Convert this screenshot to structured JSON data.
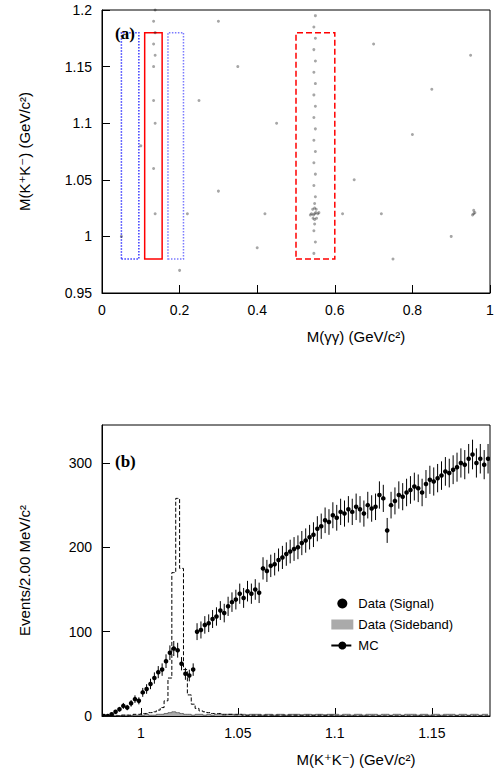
{
  "chart_data": [
    {
      "type": "scatter",
      "title": "(a)",
      "x_label": "M(γγ) (GeV/c²)",
      "y_label": "M(K⁺K⁻) (GeV/c²)",
      "xlim": [
        0,
        1
      ],
      "ylim": [
        0.95,
        1.2
      ],
      "xticks": [
        0,
        0.2,
        0.4,
        0.6,
        0.8,
        1
      ],
      "yticks": [
        0.95,
        1,
        1.05,
        1.1,
        1.15,
        1.2
      ],
      "color": "#000000",
      "x": [
        0.548,
        0.545,
        0.551,
        0.54,
        0.556,
        0.548,
        0.548,
        0.543,
        0.553,
        0.544,
        0.552,
        0.537,
        0.559,
        0.548,
        0.548,
        0.546,
        0.55,
        0.546,
        0.55,
        0.546,
        0.55,
        0.546,
        0.55,
        0.546,
        0.55,
        0.546,
        0.55,
        0.546,
        0.55,
        0.546,
        0.55,
        0.546,
        0.55,
        0.546,
        0.55,
        0.133,
        0.137,
        0.133,
        0.137,
        0.133,
        0.137,
        0.133,
        0.137,
        0.133,
        0.137,
        0.958,
        0.955,
        0.961,
        0.958,
        0.05,
        0.1,
        0.2,
        0.25,
        0.3,
        0.35,
        0.4,
        0.45,
        0.65,
        0.7,
        0.75,
        0.8,
        0.85,
        0.9,
        0.95,
        0.3,
        0.62,
        0.72,
        0.42,
        0.22
      ],
      "y": [
        1.02,
        1.019,
        1.021,
        1.02,
        1.02,
        1.015,
        1.025,
        1.024,
        1.016,
        1.016,
        1.024,
        1.019,
        1.021,
        1.029,
        1.011,
        0.985,
        0.995,
        1.005,
        1.035,
        1.045,
        1.055,
        1.065,
        1.075,
        1.085,
        1.095,
        1.105,
        1.115,
        1.125,
        1.135,
        1.145,
        1.155,
        1.165,
        1.175,
        1.185,
        1.195,
        1.15,
        1.16,
        1.17,
        1.18,
        1.19,
        1.2,
        1.12,
        1.1,
        1.06,
        1.02,
        1.02,
        1.019,
        1.021,
        1.023,
        1.0,
        1.08,
        0.97,
        1.12,
        1.04,
        1.15,
        0.99,
        1.1,
        1.05,
        1.17,
        0.98,
        1.09,
        1.13,
        1.0,
        1.16,
        1.19,
        1.02,
        1.02,
        1.02,
        1.02
      ],
      "regions": [
        {
          "x": [
            0.05,
            0.095
          ],
          "y": [
            0.98,
            1.18
          ],
          "color": "#3a3aff",
          "line_style": "dotted"
        },
        {
          "x": [
            0.11,
            0.155
          ],
          "y": [
            0.98,
            1.18
          ],
          "color": "#ff0000",
          "line_style": "solid"
        },
        {
          "x": [
            0.17,
            0.21
          ],
          "y": [
            0.98,
            1.18
          ],
          "color": "#7a7aff",
          "line_style": "dotted"
        },
        {
          "x": [
            0.5,
            0.6
          ],
          "y": [
            0.98,
            1.18
          ],
          "color": "#ff0000",
          "line_style": "dashed"
        }
      ]
    },
    {
      "type": "histogram",
      "title": "(b)",
      "x_label": "M(K⁺K⁻) (GeV/c²)",
      "y_label": "Events/2.00 MeV/c²",
      "xlim": [
        0.98,
        1.18
      ],
      "ylim": [
        0,
        345
      ],
      "xticks": [
        1,
        1.05,
        1.1,
        1.15
      ],
      "yticks": [
        0,
        100,
        200,
        300
      ],
      "legend": "right",
      "x": [
        0.981,
        0.983,
        0.985,
        0.987,
        0.989,
        0.991,
        0.993,
        0.995,
        0.997,
        0.999,
        1.001,
        1.003,
        1.005,
        1.007,
        1.009,
        1.011,
        1.013,
        1.015,
        1.017,
        1.019,
        1.021,
        1.023,
        1.025,
        1.027,
        1.029,
        1.031,
        1.033,
        1.035,
        1.037,
        1.039,
        1.041,
        1.043,
        1.045,
        1.047,
        1.049,
        1.051,
        1.053,
        1.055,
        1.057,
        1.059,
        1.061,
        1.063,
        1.065,
        1.067,
        1.069,
        1.071,
        1.073,
        1.075,
        1.077,
        1.079,
        1.081,
        1.083,
        1.085,
        1.087,
        1.089,
        1.091,
        1.093,
        1.095,
        1.097,
        1.099,
        1.101,
        1.103,
        1.105,
        1.107,
        1.109,
        1.111,
        1.113,
        1.115,
        1.117,
        1.119,
        1.121,
        1.123,
        1.125,
        1.127,
        1.129,
        1.131,
        1.133,
        1.135,
        1.137,
        1.139,
        1.141,
        1.143,
        1.145,
        1.147,
        1.149,
        1.151,
        1.153,
        1.155,
        1.157,
        1.159,
        1.161,
        1.163,
        1.165,
        1.167,
        1.169,
        1.171,
        1.173,
        1.175,
        1.177,
        1.179
      ],
      "series": [
        {
          "name": "Data (Signal)",
          "type": "errorbar",
          "color": "#000000",
          "marker": "circle",
          "values": [
            0,
            0,
            2,
            5,
            8,
            12,
            10,
            15,
            20,
            18,
            28,
            32,
            38,
            45,
            52,
            55,
            65,
            75,
            80,
            78,
            62,
            50,
            48,
            55,
            100,
            102,
            108,
            110,
            115,
            118,
            125,
            122,
            130,
            135,
            138,
            145,
            140,
            148,
            145,
            150,
            146,
            175,
            172,
            178,
            180,
            185,
            188,
            192,
            195,
            198,
            200,
            205,
            208,
            212,
            215,
            222,
            225,
            232,
            230,
            238,
            235,
            242,
            240,
            245,
            242,
            248,
            245,
            240,
            250,
            246,
            248,
            262,
            258,
            220,
            250,
            255,
            262,
            260,
            265,
            268,
            272,
            270,
            265,
            275,
            280,
            278,
            282,
            285,
            290,
            288,
            292,
            295,
            300,
            298,
            305,
            310,
            300,
            305,
            298,
            305
          ],
          "errors": [
            0,
            0,
            1.4,
            2.2,
            2.8,
            3.5,
            3.2,
            3.9,
            4.5,
            4.2,
            5.3,
            5.7,
            6.2,
            6.7,
            7.2,
            7.4,
            8.1,
            8.7,
            8.9,
            8.8,
            7.9,
            7.1,
            6.9,
            7.4,
            10,
            10.1,
            10.4,
            10.5,
            10.7,
            10.9,
            11.2,
            11.0,
            11.4,
            11.6,
            11.7,
            12.0,
            11.8,
            12.2,
            12.0,
            12.2,
            12.1,
            13.2,
            13.1,
            13.3,
            13.4,
            13.6,
            13.7,
            13.9,
            14.0,
            14.1,
            14.1,
            14.3,
            14.4,
            14.6,
            14.7,
            14.9,
            15.0,
            15.2,
            15.2,
            15.4,
            15.3,
            15.6,
            15.5,
            15.7,
            15.6,
            15.7,
            15.7,
            15.5,
            15.8,
            15.7,
            15.7,
            16.2,
            16.1,
            14.8,
            15.8,
            16.0,
            16.2,
            16.1,
            16.3,
            16.4,
            16.5,
            16.4,
            16.3,
            16.6,
            16.7,
            16.7,
            16.8,
            16.9,
            17.0,
            17.0,
            17.1,
            17.2,
            17.3,
            17.3,
            17.5,
            17.6,
            17.3,
            17.5,
            17.3,
            17.5
          ]
        },
        {
          "name": "Data (Sideband)",
          "type": "area",
          "color": "#aaaaaa",
          "values": [
            0,
            0,
            0,
            1,
            0,
            1,
            1,
            0,
            1,
            1,
            1,
            2,
            1,
            1,
            2,
            2,
            3,
            4,
            5,
            4,
            3,
            2,
            2,
            1,
            2,
            2,
            1,
            2,
            1,
            2,
            2,
            1,
            2,
            2,
            1,
            2,
            2,
            1,
            2,
            2,
            2,
            1,
            2,
            2,
            1,
            2,
            2,
            1,
            2,
            2,
            2,
            1,
            2,
            2,
            1,
            2,
            2,
            1,
            2,
            2,
            2,
            1,
            2,
            2,
            1,
            2,
            2,
            1,
            2,
            2,
            2,
            1,
            2,
            2,
            1,
            2,
            2,
            1,
            2,
            2,
            2,
            1,
            2,
            2,
            1,
            2,
            2,
            1,
            2,
            2,
            2,
            1,
            2,
            2,
            1,
            2,
            2,
            1,
            2,
            2
          ]
        },
        {
          "name": "MC",
          "type": "line",
          "color": "#000000",
          "line_style": "dashed",
          "values": [
            0,
            0,
            0,
            0,
            0,
            1,
            1,
            1,
            2,
            2,
            3,
            3,
            4,
            5,
            7,
            10,
            18,
            45,
            170,
            258,
            175,
            55,
            25,
            14,
            9,
            6,
            5,
            4,
            3,
            3,
            3,
            2,
            2,
            2,
            2,
            2,
            1,
            1,
            1,
            1,
            1,
            1,
            1,
            1,
            1,
            1,
            1,
            1,
            1,
            1,
            1,
            1,
            1,
            1,
            1,
            1,
            1,
            1,
            1,
            1,
            0,
            0,
            0,
            0,
            0,
            0,
            0,
            0,
            0,
            0,
            0,
            0,
            0,
            0,
            0,
            0,
            0,
            0,
            0,
            0,
            0,
            0,
            0,
            0,
            0,
            0,
            0,
            0,
            0,
            0,
            0,
            0,
            0,
            0,
            0,
            0,
            0,
            0,
            0,
            0
          ]
        }
      ]
    }
  ]
}
